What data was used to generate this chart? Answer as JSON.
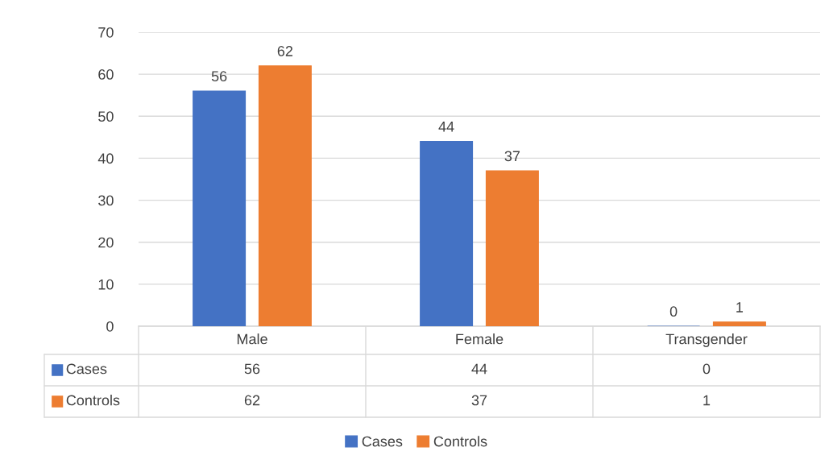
{
  "chart_data": {
    "type": "bar",
    "categories": [
      "Male",
      "Female",
      "Transgender"
    ],
    "series": [
      {
        "name": "Cases",
        "color": "#4472c4",
        "values": [
          56,
          44,
          0
        ],
        "value_labels": [
          "56",
          "44",
          "0"
        ]
      },
      {
        "name": "Controls",
        "color": "#ed7d31",
        "values": [
          62,
          37,
          1
        ],
        "value_labels": [
          "62",
          "37",
          "1"
        ]
      }
    ],
    "ylim": [
      0,
      70
    ],
    "yticks": [
      0,
      10,
      20,
      30,
      40,
      50,
      60,
      70
    ],
    "grid": "y",
    "legend": "bottom",
    "annotations": [
      "56",
      "44",
      "0",
      "62",
      "37",
      "1"
    ]
  }
}
